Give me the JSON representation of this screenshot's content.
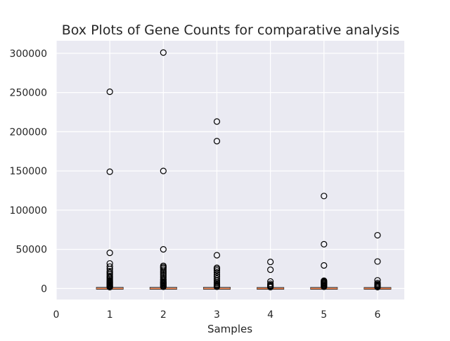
{
  "chart_data": {
    "type": "box",
    "title": "Box Plots of Gene Counts for comparative analysis",
    "xlabel": "Samples",
    "ylabel": "",
    "xlim": [
      0,
      6.5
    ],
    "ylim": [
      -14000,
      316000
    ],
    "x_ticks": [
      0,
      1,
      2,
      3,
      4,
      5,
      6
    ],
    "y_ticks": [
      0,
      50000,
      100000,
      150000,
      200000,
      250000,
      300000
    ],
    "grid": true,
    "style": {
      "background": "#eaeaf2",
      "grid_color": "#ffffff",
      "median_color": "#e6733b",
      "box_edge": "#262626"
    },
    "boxes": [
      {
        "position": 1,
        "q1": 0,
        "median": 60,
        "q3": 600,
        "whisker_low": 0,
        "whisker_high": 1500,
        "outliers": [
          251000,
          149000,
          45500,
          32000,
          28000,
          25000,
          22000,
          20000,
          18000,
          16000,
          14500,
          13000,
          11500,
          10000,
          9000,
          8000,
          7000,
          6000,
          5000,
          4000,
          3200,
          2500,
          1800
        ]
      },
      {
        "position": 2,
        "q1": 0,
        "median": 60,
        "q3": 600,
        "whisker_low": 0,
        "whisker_high": 1500,
        "outliers": [
          301000,
          150000,
          50000,
          29000,
          27500,
          26000,
          24000,
          22000,
          20000,
          18000,
          16000,
          14000,
          12000,
          10500,
          9000,
          8000,
          7000,
          6000,
          5000,
          4000,
          3000,
          2200
        ]
      },
      {
        "position": 3,
        "q1": 0,
        "median": 60,
        "q3": 600,
        "whisker_low": 0,
        "whisker_high": 1500,
        "outliers": [
          213000,
          188000,
          42500,
          26500,
          25000,
          23000,
          20500,
          17500,
          15000,
          12500,
          10000,
          8000,
          6500,
          5000,
          4000,
          3000,
          2200
        ]
      },
      {
        "position": 4,
        "q1": 0,
        "median": 40,
        "q3": 400,
        "whisker_low": 0,
        "whisker_high": 1000,
        "outliers": [
          34000,
          24000,
          9000,
          6000,
          4500,
          3500,
          2500,
          1800
        ]
      },
      {
        "position": 5,
        "q1": 0,
        "median": 50,
        "q3": 500,
        "whisker_low": 0,
        "whisker_high": 1200,
        "outliers": [
          118000,
          56500,
          29500,
          10000,
          9000,
          8000,
          7000,
          6000,
          5000,
          4000,
          3000,
          2200
        ]
      },
      {
        "position": 6,
        "q1": 0,
        "median": 40,
        "q3": 400,
        "whisker_low": 0,
        "whisker_high": 1000,
        "outliers": [
          68000,
          34500,
          10500,
          7000,
          5500,
          4500,
          3500,
          2500,
          1800
        ]
      }
    ]
  }
}
